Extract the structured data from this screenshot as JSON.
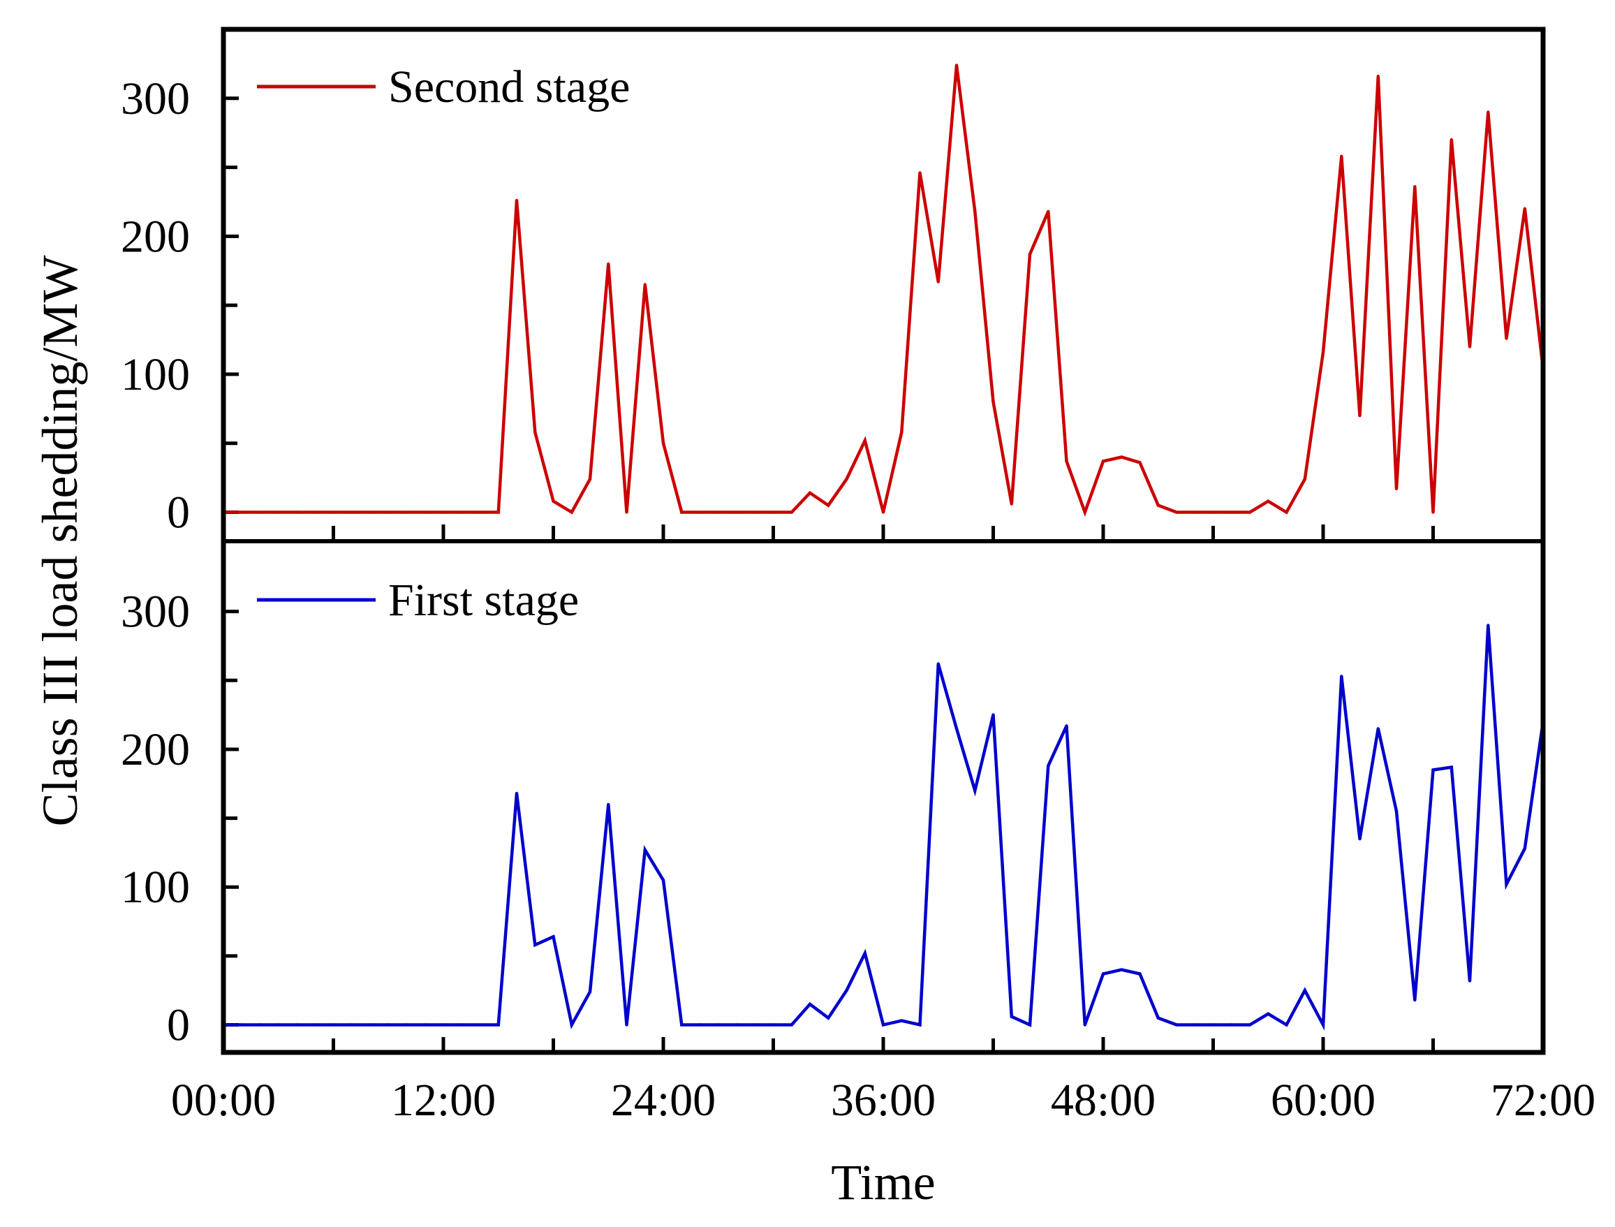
{
  "chart_data": {
    "type": "line",
    "ylabel": "Class III load shedding/MW",
    "xlabel": "Time",
    "xlim": [
      0,
      72
    ],
    "x_ticks": [
      0,
      12,
      24,
      36,
      48,
      60,
      72
    ],
    "x_tick_labels": [
      "00:00",
      "12:00",
      "24:00",
      "36:00",
      "48:00",
      "60:00",
      "72:00"
    ],
    "ylim": [
      -20,
      350
    ],
    "y_ticks": [
      0,
      100,
      200,
      300
    ],
    "y_tick_labels": [
      "0",
      "100",
      "200",
      "300"
    ],
    "panels": [
      {
        "name": "Second stage",
        "legend": "Second stage",
        "color": "#cc0000",
        "x": [
          0,
          1,
          2,
          3,
          4,
          5,
          6,
          7,
          8,
          9,
          10,
          11,
          12,
          13,
          14,
          15,
          16,
          17,
          18,
          19,
          20,
          21,
          22,
          23,
          24,
          25,
          26,
          27,
          28,
          29,
          30,
          31,
          32,
          33,
          34,
          35,
          36,
          37,
          38,
          39,
          40,
          41,
          42,
          43,
          44,
          45,
          46,
          47,
          48,
          49,
          50,
          51,
          52,
          53,
          54,
          55,
          56,
          57,
          58,
          59,
          60,
          61,
          62,
          63,
          64,
          65,
          66,
          67,
          68,
          69,
          70,
          71,
          72
        ],
        "values": [
          0,
          0,
          0,
          0,
          0,
          0,
          0,
          0,
          0,
          0,
          0,
          0,
          0,
          0,
          0,
          0,
          226,
          58,
          8,
          0,
          24,
          180,
          0,
          165,
          50,
          0,
          0,
          0,
          0,
          0,
          0,
          0,
          14,
          5,
          24,
          52,
          0,
          58,
          246,
          167,
          324,
          218,
          80,
          6,
          187,
          218,
          37,
          0,
          37,
          40,
          36,
          5,
          0,
          0,
          0,
          0,
          0,
          8,
          0,
          24,
          116,
          258,
          70,
          316,
          17,
          236,
          0,
          270,
          120,
          290,
          126,
          220,
          104
        ]
      },
      {
        "name": "First stage",
        "legend": "First stage",
        "color": "#0000cc",
        "x": [
          0,
          1,
          2,
          3,
          4,
          5,
          6,
          7,
          8,
          9,
          10,
          11,
          12,
          13,
          14,
          15,
          16,
          17,
          18,
          19,
          20,
          21,
          22,
          23,
          24,
          25,
          26,
          27,
          28,
          29,
          30,
          31,
          32,
          33,
          34,
          35,
          36,
          37,
          38,
          39,
          40,
          41,
          42,
          43,
          44,
          45,
          46,
          47,
          48,
          49,
          50,
          51,
          52,
          53,
          54,
          55,
          56,
          57,
          58,
          59,
          60,
          61,
          62,
          63,
          64,
          65,
          66,
          67,
          68,
          69,
          70,
          71,
          72
        ],
        "values": [
          0,
          0,
          0,
          0,
          0,
          0,
          0,
          0,
          0,
          0,
          0,
          0,
          0,
          0,
          0,
          0,
          168,
          58,
          64,
          0,
          24,
          160,
          0,
          127,
          105,
          0,
          0,
          0,
          0,
          0,
          0,
          0,
          15,
          5,
          25,
          52,
          0,
          3,
          0,
          262,
          215,
          170,
          225,
          6,
          0,
          188,
          217,
          0,
          37,
          40,
          37,
          5,
          0,
          0,
          0,
          0,
          0,
          8,
          0,
          25,
          0,
          253,
          135,
          215,
          155,
          18,
          185,
          187,
          32,
          290,
          102,
          128,
          220
        ]
      }
    ]
  }
}
